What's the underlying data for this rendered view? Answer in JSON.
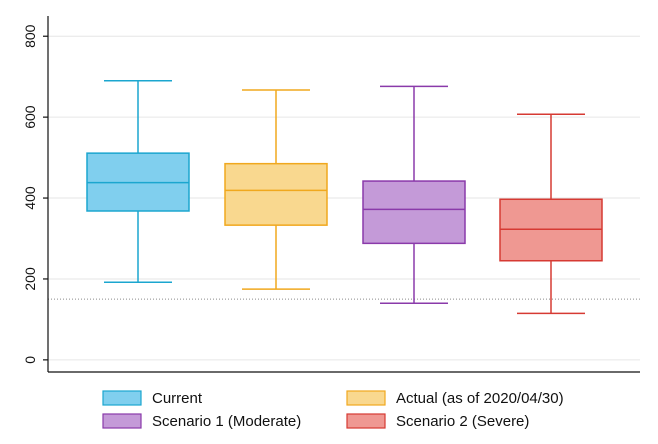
{
  "chart_data": {
    "type": "box",
    "title": "",
    "xlabel": "",
    "ylabel": "",
    "ylim": [
      -30,
      850
    ],
    "yticks": [
      0,
      200,
      400,
      600,
      800
    ],
    "grid": true,
    "reference_line": {
      "y": 150,
      "style": "dotted",
      "color": "#8a8a8a"
    },
    "legend_position": "bottom",
    "series": [
      {
        "name": "Current",
        "whisker_low": 192,
        "q1": 368,
        "median": 438,
        "q3": 511,
        "whisker_high": 690,
        "fill": "#80cfee",
        "stroke": "#1ba6cf"
      },
      {
        "name": "Actual (as of 2020/04/30)",
        "whisker_low": 175,
        "q1": 333,
        "median": 419,
        "q3": 485,
        "whisker_high": 667,
        "fill": "#f9d88f",
        "stroke": "#f0a81e"
      },
      {
        "name": "Scenario 1 (Moderate)",
        "whisker_low": 140,
        "q1": 288,
        "median": 372,
        "q3": 442,
        "whisker_high": 676,
        "fill": "#c49ad8",
        "stroke": "#8a3aaa"
      },
      {
        "name": "Scenario 2 (Severe)",
        "whisker_low": 115,
        "q1": 245,
        "median": 323,
        "q3": 397,
        "whisker_high": 607,
        "fill": "#ef9892",
        "stroke": "#d63a33"
      }
    ]
  }
}
